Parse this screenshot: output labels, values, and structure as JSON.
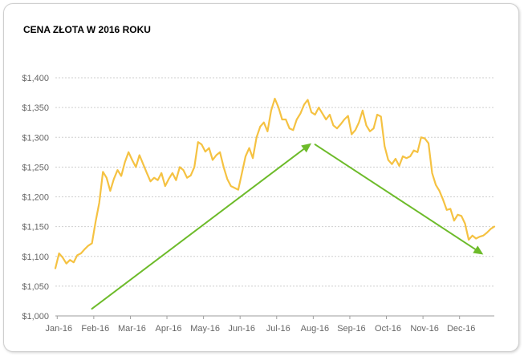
{
  "chart_data": {
    "type": "line",
    "title": "CENA ZŁOTA W 2016 ROKU",
    "xlabel": "",
    "ylabel": "",
    "ylim": [
      1000,
      1400
    ],
    "y_ticks": [
      1000,
      1050,
      1100,
      1150,
      1200,
      1250,
      1300,
      1350,
      1400
    ],
    "y_tick_labels": [
      "$1,000",
      "$1,050",
      "$1,100",
      "$1,150",
      "$1,200",
      "$1,250",
      "$1,300",
      "$1,350",
      "$1,400"
    ],
    "x_tick_labels": [
      "Jan-16",
      "Feb-16",
      "Mar-16",
      "Apr-16",
      "May-16",
      "Jun-16",
      "Jul-16",
      "Aug-16",
      "Sep-16",
      "Oct-16",
      "Nov-16",
      "Dec-16"
    ],
    "grid": "horizontal-dotted",
    "legend": "none",
    "series": [
      {
        "color": "#f5c242",
        "x": [
          0.0,
          0.1,
          0.2,
          0.3,
          0.4,
          0.5,
          0.6,
          0.7,
          0.8,
          0.9,
          1.0,
          1.1,
          1.2,
          1.3,
          1.4,
          1.5,
          1.6,
          1.7,
          1.8,
          1.9,
          2.0,
          2.1,
          2.2,
          2.3,
          2.4,
          2.5,
          2.6,
          2.7,
          2.8,
          2.9,
          3.0,
          3.1,
          3.2,
          3.3,
          3.4,
          3.5,
          3.6,
          3.7,
          3.8,
          3.9,
          4.0,
          4.1,
          4.2,
          4.3,
          4.4,
          4.5,
          4.6,
          4.7,
          4.8,
          4.9,
          5.0,
          5.1,
          5.2,
          5.3,
          5.4,
          5.5,
          5.6,
          5.7,
          5.8,
          5.9,
          6.0,
          6.1,
          6.2,
          6.3,
          6.4,
          6.5,
          6.6,
          6.7,
          6.8,
          6.9,
          7.0,
          7.1,
          7.2,
          7.3,
          7.4,
          7.5,
          7.6,
          7.7,
          7.8,
          7.9,
          8.0,
          8.1,
          8.2,
          8.3,
          8.4,
          8.5,
          8.6,
          8.7,
          8.8,
          8.9,
          9.0,
          9.1,
          9.2,
          9.3,
          9.4,
          9.5,
          9.6,
          9.7,
          9.8,
          9.9,
          10.0,
          10.1,
          10.2,
          10.3,
          10.4,
          10.5,
          10.6,
          10.7,
          10.8,
          10.9,
          11.0,
          11.1,
          11.2,
          11.3,
          11.4,
          11.5,
          11.6,
          11.7,
          11.8,
          11.9,
          12.0
        ],
        "values": [
          1080,
          1105,
          1098,
          1088,
          1094,
          1090,
          1102,
          1105,
          1112,
          1118,
          1122,
          1158,
          1190,
          1242,
          1232,
          1210,
          1230,
          1245,
          1235,
          1258,
          1275,
          1262,
          1250,
          1270,
          1255,
          1240,
          1226,
          1232,
          1228,
          1240,
          1218,
          1230,
          1240,
          1228,
          1250,
          1245,
          1232,
          1236,
          1250,
          1292,
          1288,
          1276,
          1282,
          1262,
          1270,
          1275,
          1250,
          1230,
          1218,
          1215,
          1212,
          1240,
          1268,
          1282,
          1265,
          1300,
          1318,
          1325,
          1310,
          1345,
          1365,
          1350,
          1330,
          1330,
          1315,
          1312,
          1330,
          1340,
          1355,
          1363,
          1342,
          1338,
          1350,
          1340,
          1330,
          1338,
          1320,
          1315,
          1322,
          1330,
          1336,
          1305,
          1312,
          1325,
          1345,
          1320,
          1310,
          1315,
          1338,
          1335,
          1285,
          1262,
          1255,
          1264,
          1252,
          1268,
          1265,
          1268,
          1278,
          1275,
          1300,
          1298,
          1290,
          1240,
          1220,
          1210,
          1195,
          1178,
          1180,
          1160,
          1170,
          1168,
          1155,
          1128,
          1135,
          1130,
          1133,
          1135,
          1140,
          1146,
          1150
        ]
      }
    ],
    "annotations": [
      {
        "type": "arrow",
        "color": "#6dbb2a",
        "from": {
          "x": 1.0,
          "y": 1012
        },
        "to": {
          "x": 7.0,
          "y": 1290
        }
      },
      {
        "type": "arrow",
        "color": "#6dbb2a",
        "from": {
          "x": 7.1,
          "y": 1288
        },
        "to": {
          "x": 11.7,
          "y": 1103
        }
      }
    ]
  }
}
